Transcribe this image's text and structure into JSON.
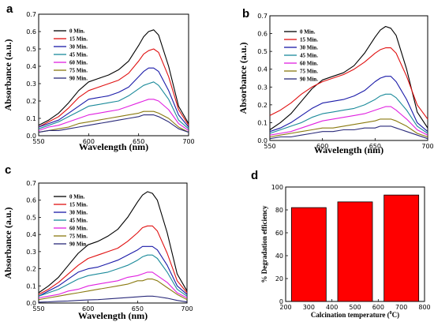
{
  "chart_data": [
    {
      "panel": "a",
      "type": "line",
      "xlabel": "Wavelength (nm)",
      "ylabel": "Absorbance (a.u.)",
      "xlim": [
        550,
        700
      ],
      "ylim": [
        0,
        0.7
      ],
      "xticks": [
        550,
        600,
        650,
        700
      ],
      "yticks": [
        0.0,
        0.1,
        0.2,
        0.3,
        0.4,
        0.5,
        0.6,
        0.7
      ],
      "legend_position": "top-left",
      "x": [
        550,
        560,
        570,
        580,
        590,
        600,
        610,
        620,
        630,
        640,
        650,
        655,
        660,
        665,
        670,
        680,
        690,
        700
      ],
      "series": [
        {
          "name": "0 Min.",
          "color": "#000000",
          "values": [
            0.06,
            0.09,
            0.13,
            0.19,
            0.26,
            0.31,
            0.33,
            0.35,
            0.38,
            0.43,
            0.52,
            0.57,
            0.6,
            0.61,
            0.58,
            0.4,
            0.17,
            0.07
          ]
        },
        {
          "name": "15 Min.",
          "color": "#e01010",
          "values": [
            0.05,
            0.08,
            0.11,
            0.16,
            0.22,
            0.26,
            0.28,
            0.3,
            0.32,
            0.36,
            0.43,
            0.47,
            0.49,
            0.5,
            0.48,
            0.34,
            0.15,
            0.06
          ]
        },
        {
          "name": "30 Min.",
          "color": "#1a1aa8",
          "values": [
            0.05,
            0.07,
            0.09,
            0.13,
            0.17,
            0.21,
            0.22,
            0.23,
            0.25,
            0.28,
            0.34,
            0.37,
            0.39,
            0.39,
            0.37,
            0.26,
            0.12,
            0.05
          ]
        },
        {
          "name": "45 Min.",
          "color": "#1a8a9a",
          "values": [
            0.04,
            0.06,
            0.08,
            0.11,
            0.14,
            0.17,
            0.18,
            0.19,
            0.2,
            0.23,
            0.27,
            0.29,
            0.3,
            0.31,
            0.29,
            0.21,
            0.09,
            0.04
          ]
        },
        {
          "name": "60 Min.",
          "color": "#e020e0",
          "values": [
            0.03,
            0.05,
            0.06,
            0.08,
            0.1,
            0.12,
            0.13,
            0.14,
            0.15,
            0.17,
            0.19,
            0.2,
            0.21,
            0.21,
            0.2,
            0.15,
            0.07,
            0.03
          ]
        },
        {
          "name": "75 Min.",
          "color": "#8a7a10",
          "values": [
            0.02,
            0.03,
            0.04,
            0.05,
            0.07,
            0.08,
            0.09,
            0.1,
            0.11,
            0.12,
            0.13,
            0.14,
            0.14,
            0.14,
            0.13,
            0.1,
            0.05,
            0.02
          ]
        },
        {
          "name": "90 Min.",
          "color": "#2a2a7a",
          "values": [
            0.02,
            0.03,
            0.03,
            0.04,
            0.05,
            0.06,
            0.07,
            0.08,
            0.09,
            0.1,
            0.11,
            0.12,
            0.12,
            0.12,
            0.11,
            0.08,
            0.04,
            0.02
          ]
        }
      ]
    },
    {
      "panel": "b",
      "type": "line",
      "xlabel": "Wavelength (nm)",
      "ylabel": "Absorbance (a.u.)",
      "xlim": [
        550,
        700
      ],
      "ylim": [
        0,
        0.7
      ],
      "xticks": [
        550,
        600,
        650,
        700
      ],
      "yticks": [
        0.0,
        0.1,
        0.2,
        0.3,
        0.4,
        0.5,
        0.6,
        0.7
      ],
      "legend_position": "top-left",
      "x": [
        550,
        560,
        570,
        580,
        590,
        600,
        610,
        620,
        630,
        640,
        650,
        655,
        660,
        665,
        670,
        680,
        690,
        700
      ],
      "series": [
        {
          "name": "0 Min.",
          "color": "#000000",
          "values": [
            0.06,
            0.1,
            0.15,
            0.22,
            0.29,
            0.34,
            0.36,
            0.38,
            0.42,
            0.49,
            0.58,
            0.62,
            0.64,
            0.63,
            0.59,
            0.4,
            0.16,
            0.07
          ]
        },
        {
          "name": "15 Min.",
          "color": "#e01010",
          "values": [
            0.14,
            0.17,
            0.21,
            0.26,
            0.3,
            0.33,
            0.35,
            0.37,
            0.4,
            0.44,
            0.49,
            0.51,
            0.52,
            0.52,
            0.49,
            0.36,
            0.2,
            0.12
          ]
        },
        {
          "name": "30 Min.",
          "color": "#1a1aa8",
          "values": [
            0.05,
            0.07,
            0.1,
            0.14,
            0.18,
            0.21,
            0.22,
            0.23,
            0.25,
            0.28,
            0.33,
            0.35,
            0.36,
            0.36,
            0.33,
            0.23,
            0.1,
            0.05
          ]
        },
        {
          "name": "45 Min.",
          "color": "#1a8a9a",
          "values": [
            0.04,
            0.06,
            0.08,
            0.1,
            0.13,
            0.15,
            0.16,
            0.17,
            0.18,
            0.2,
            0.23,
            0.25,
            0.26,
            0.26,
            0.24,
            0.17,
            0.08,
            0.04
          ]
        },
        {
          "name": "60 Min.",
          "color": "#e020e0",
          "values": [
            0.03,
            0.04,
            0.05,
            0.07,
            0.09,
            0.11,
            0.12,
            0.13,
            0.14,
            0.15,
            0.17,
            0.18,
            0.19,
            0.19,
            0.17,
            0.12,
            0.06,
            0.03
          ]
        },
        {
          "name": "75 Min.",
          "color": "#8a7a10",
          "values": [
            0.02,
            0.03,
            0.04,
            0.05,
            0.06,
            0.07,
            0.07,
            0.08,
            0.09,
            0.1,
            0.11,
            0.12,
            0.12,
            0.12,
            0.11,
            0.08,
            0.04,
            0.02
          ]
        },
        {
          "name": "90 Min.",
          "color": "#2a2a7a",
          "values": [
            0.01,
            0.02,
            0.02,
            0.03,
            0.04,
            0.05,
            0.05,
            0.06,
            0.06,
            0.07,
            0.07,
            0.08,
            0.08,
            0.08,
            0.07,
            0.05,
            0.03,
            0.01
          ]
        }
      ]
    },
    {
      "panel": "c",
      "type": "line",
      "xlabel": "Wavelength (nm)",
      "ylabel": "Absorbance (a.u.)",
      "xlim": [
        550,
        700
      ],
      "ylim": [
        0,
        0.7
      ],
      "xticks": [
        550,
        600,
        650,
        700
      ],
      "yticks": [
        0.0,
        0.1,
        0.2,
        0.3,
        0.4,
        0.5,
        0.6,
        0.7
      ],
      "legend_position": "top-left",
      "x": [
        550,
        560,
        570,
        580,
        590,
        600,
        610,
        620,
        630,
        640,
        650,
        655,
        660,
        665,
        670,
        680,
        690,
        700
      ],
      "series": [
        {
          "name": "0 Min.",
          "color": "#000000",
          "values": [
            0.06,
            0.1,
            0.15,
            0.22,
            0.29,
            0.34,
            0.36,
            0.39,
            0.43,
            0.5,
            0.59,
            0.63,
            0.65,
            0.64,
            0.6,
            0.41,
            0.17,
            0.07
          ]
        },
        {
          "name": "15 Min.",
          "color": "#e01010",
          "values": [
            0.05,
            0.08,
            0.12,
            0.17,
            0.22,
            0.26,
            0.28,
            0.3,
            0.32,
            0.36,
            0.41,
            0.44,
            0.45,
            0.45,
            0.42,
            0.29,
            0.13,
            0.06
          ]
        },
        {
          "name": "30 Min.",
          "color": "#1a1aa8",
          "values": [
            0.04,
            0.07,
            0.1,
            0.14,
            0.18,
            0.2,
            0.21,
            0.23,
            0.25,
            0.28,
            0.31,
            0.33,
            0.33,
            0.33,
            0.31,
            0.22,
            0.1,
            0.05
          ]
        },
        {
          "name": "45 Min.",
          "color": "#1a8a9a",
          "values": [
            0.04,
            0.06,
            0.08,
            0.11,
            0.14,
            0.16,
            0.17,
            0.18,
            0.2,
            0.22,
            0.25,
            0.27,
            0.28,
            0.28,
            0.26,
            0.18,
            0.08,
            0.04
          ]
        },
        {
          "name": "60 Min.",
          "color": "#e020e0",
          "values": [
            0.03,
            0.04,
            0.05,
            0.07,
            0.08,
            0.1,
            0.11,
            0.12,
            0.13,
            0.15,
            0.16,
            0.17,
            0.18,
            0.18,
            0.16,
            0.12,
            0.06,
            0.03
          ]
        },
        {
          "name": "75 Min.",
          "color": "#8a7a10",
          "values": [
            0.02,
            0.03,
            0.04,
            0.05,
            0.06,
            0.07,
            0.08,
            0.09,
            0.1,
            0.11,
            0.13,
            0.13,
            0.14,
            0.14,
            0.13,
            0.09,
            0.05,
            0.02
          ]
        },
        {
          "name": "90 Min.",
          "color": "#2a2a7a",
          "values": [
            0.005,
            0.007,
            0.01,
            0.012,
            0.015,
            0.018,
            0.02,
            0.024,
            0.028,
            0.032,
            0.036,
            0.038,
            0.04,
            0.04,
            0.037,
            0.028,
            0.015,
            0.006
          ]
        }
      ]
    },
    {
      "panel": "d",
      "type": "bar",
      "xlabel_prefix": "Calcination temperature (",
      "xlabel_sup": "0",
      "xlabel_suffix": "C)",
      "ylabel": "% Degradation efficiency",
      "xlim": [
        200,
        800
      ],
      "ylim": [
        0,
        100
      ],
      "xticks": [
        200,
        300,
        400,
        500,
        600,
        700,
        800
      ],
      "yticks": [
        0,
        20,
        40,
        60,
        80,
        100
      ],
      "bar_width": 150,
      "bar_color": "#ff0000",
      "x": [
        300,
        500,
        700
      ],
      "values": [
        82,
        87,
        93
      ]
    }
  ]
}
